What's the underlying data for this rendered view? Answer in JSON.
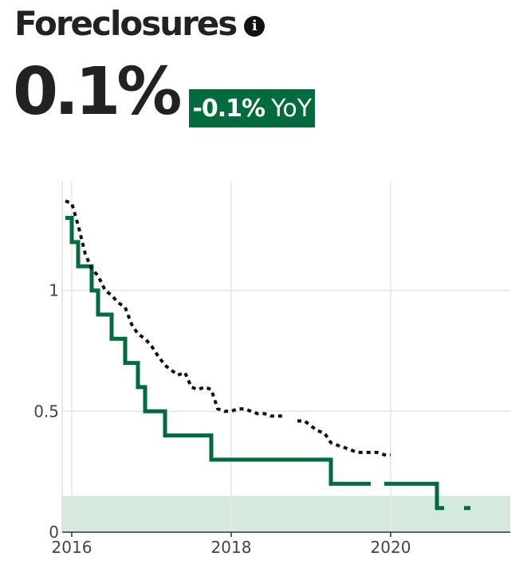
{
  "header": {
    "title": "Foreclosures",
    "info_icon": "info-circle-icon",
    "value": "0.1%",
    "change": "-0.1%",
    "change_suffix": "YoY"
  },
  "colors": {
    "accent": "#006b3c",
    "band": "#d6e9df",
    "comparison": "#111111",
    "grid": "#e6e6e6"
  },
  "chart_data": {
    "type": "line",
    "title": "",
    "xlabel": "",
    "ylabel": "",
    "xlim": [
      2015.88,
      2021.5
    ],
    "ylim": [
      0,
      1.45
    ],
    "x_ticks": [
      2016,
      2018,
      2020
    ],
    "y_ticks": [
      0,
      0.5,
      1
    ],
    "x_tick_labels": [
      "2016",
      "2018",
      "2020"
    ],
    "y_tick_labels": [
      "0",
      "0.5",
      "1"
    ],
    "grid": true,
    "shaded_band": {
      "from": 0,
      "to": 0.15
    },
    "series": [
      {
        "style": "solid",
        "points": [
          [
            2015.92,
            1.3
          ],
          [
            2016.0,
            1.3
          ],
          [
            2016.0,
            1.2
          ],
          [
            2016.08,
            1.2
          ],
          [
            2016.08,
            1.1
          ],
          [
            2016.25,
            1.1
          ],
          [
            2016.25,
            1.0
          ],
          [
            2016.33,
            1.0
          ],
          [
            2016.33,
            0.9
          ],
          [
            2016.5,
            0.9
          ],
          [
            2016.5,
            0.8
          ],
          [
            2016.67,
            0.8
          ],
          [
            2016.67,
            0.7
          ],
          [
            2016.83,
            0.7
          ],
          [
            2016.83,
            0.6
          ],
          [
            2016.92,
            0.6
          ],
          [
            2016.92,
            0.5
          ],
          [
            2017.17,
            0.5
          ],
          [
            2017.17,
            0.4
          ],
          [
            2017.75,
            0.4
          ],
          [
            2017.75,
            0.3
          ],
          [
            2019.25,
            0.3
          ],
          [
            2019.25,
            0.2
          ],
          [
            2019.75,
            0.2
          ],
          null,
          [
            2019.92,
            0.2
          ],
          [
            2020.58,
            0.2
          ],
          [
            2020.58,
            0.1
          ],
          [
            2020.67,
            0.1
          ],
          null,
          [
            2020.92,
            0.1
          ],
          [
            2021.0,
            0.1
          ]
        ]
      },
      {
        "style": "dotted",
        "points": [
          [
            2015.92,
            1.37
          ],
          [
            2016.0,
            1.36
          ],
          [
            2016.08,
            1.27
          ],
          [
            2016.17,
            1.15
          ],
          [
            2016.25,
            1.09
          ],
          [
            2016.33,
            1.06
          ],
          [
            2016.42,
            1.0
          ],
          [
            2016.5,
            0.98
          ],
          [
            2016.58,
            0.95
          ],
          [
            2016.67,
            0.93
          ],
          [
            2016.75,
            0.86
          ],
          [
            2016.83,
            0.82
          ],
          [
            2016.92,
            0.8
          ],
          [
            2017.0,
            0.77
          ],
          [
            2017.08,
            0.73
          ],
          [
            2017.17,
            0.69
          ],
          [
            2017.25,
            0.67
          ],
          [
            2017.33,
            0.65
          ],
          [
            2017.42,
            0.66
          ],
          [
            2017.5,
            0.6
          ],
          [
            2017.58,
            0.59
          ],
          [
            2017.67,
            0.6
          ],
          [
            2017.75,
            0.59
          ],
          [
            2017.83,
            0.51
          ],
          [
            2017.92,
            0.5
          ],
          [
            2018.0,
            0.5
          ],
          [
            2018.08,
            0.51
          ],
          [
            2018.17,
            0.51
          ],
          [
            2018.25,
            0.5
          ],
          [
            2018.33,
            0.49
          ],
          [
            2018.42,
            0.49
          ],
          [
            2018.5,
            0.48
          ],
          [
            2018.58,
            0.48
          ],
          [
            2018.67,
            0.48
          ],
          null,
          [
            2018.83,
            0.46
          ],
          [
            2018.92,
            0.46
          ],
          [
            2019.0,
            0.44
          ],
          [
            2019.08,
            0.42
          ],
          [
            2019.17,
            0.41
          ],
          [
            2019.25,
            0.37
          ],
          [
            2019.33,
            0.36
          ],
          [
            2019.42,
            0.35
          ],
          [
            2019.5,
            0.34
          ],
          [
            2019.58,
            0.33
          ],
          [
            2019.67,
            0.33
          ],
          [
            2019.75,
            0.33
          ],
          [
            2019.83,
            0.33
          ],
          [
            2019.92,
            0.32
          ],
          [
            2020.0,
            0.32
          ]
        ]
      }
    ]
  }
}
